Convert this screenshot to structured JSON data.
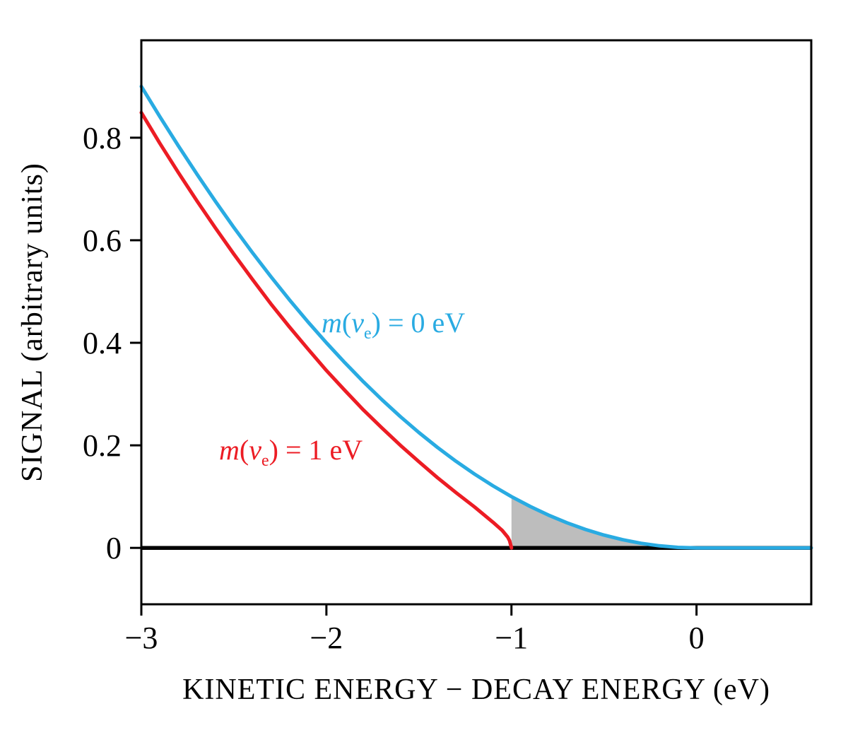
{
  "figure": {
    "background": "#ffffff"
  },
  "chart_data": {
    "type": "line",
    "title": "",
    "xlabel": "KINETIC ENERGY − DECAY ENERGY (eV)",
    "ylabel": "SIGNAL (arbitrary units)",
    "xlim": [
      -3,
      0.62
    ],
    "ylim": [
      -0.11,
      0.99
    ],
    "x_ticks": [
      -3,
      -2,
      -1,
      0
    ],
    "x_tick_labels": [
      "−3",
      "−2",
      "−1",
      "0"
    ],
    "y_ticks": [
      0,
      0.2,
      0.4,
      0.6,
      0.8
    ],
    "y_tick_labels": [
      "0",
      "0.2",
      "0.4",
      "0.6",
      "0.8"
    ],
    "grid": false,
    "axis_color": "#000000",
    "series": [
      {
        "name": "massless",
        "label": "m(νe) = 0 eV",
        "color": "#29abe2",
        "x": [
          -3,
          -2.9,
          -2.8,
          -2.7,
          -2.6,
          -2.5,
          -2.4,
          -2.3,
          -2.2,
          -2.1,
          -2,
          -1.9,
          -1.8,
          -1.7,
          -1.6,
          -1.5,
          -1.4,
          -1.3,
          -1.2,
          -1.1,
          -1,
          -0.9,
          -0.8,
          -0.7,
          -0.6,
          -0.5,
          -0.4,
          -0.3,
          -0.2,
          -0.1,
          0,
          0.2,
          0.4,
          0.62
        ],
        "y": [
          0.9,
          0.841,
          0.784,
          0.729,
          0.676,
          0.625,
          0.576,
          0.529,
          0.484,
          0.441,
          0.4,
          0.361,
          0.324,
          0.289,
          0.256,
          0.225,
          0.196,
          0.169,
          0.144,
          0.121,
          0.1,
          0.081,
          0.064,
          0.049,
          0.036,
          0.025,
          0.016,
          0.009,
          0.004,
          0.001,
          0,
          0,
          0,
          0
        ]
      },
      {
        "name": "massive-1ev",
        "label": "m(νe) = 1 eV",
        "color": "#ec1c24",
        "x": [
          -3,
          -2.9,
          -2.8,
          -2.7,
          -2.6,
          -2.5,
          -2.4,
          -2.3,
          -2.2,
          -2.1,
          -2,
          -1.9,
          -1.8,
          -1.7,
          -1.6,
          -1.5,
          -1.4,
          -1.3,
          -1.2,
          -1.1,
          -1.05,
          -1.02,
          -1.01,
          -1
        ],
        "y": [
          0.849,
          0.789,
          0.732,
          0.677,
          0.624,
          0.573,
          0.524,
          0.476,
          0.431,
          0.388,
          0.346,
          0.307,
          0.269,
          0.234,
          0.2,
          0.168,
          0.137,
          0.108,
          0.08,
          0.05,
          0.034,
          0.021,
          0.014,
          0
        ]
      }
    ],
    "baseline": {
      "y": 0,
      "color": "#000000"
    },
    "shaded_region": {
      "color": "#bdbdbd",
      "x_start": -1,
      "x_end": 0.62,
      "under_series": "massless"
    }
  },
  "labels": {
    "blue": {
      "m": "m",
      "open": "(",
      "nu": "ν",
      "sub": "e",
      "rest": ") = 0 eV"
    },
    "red": {
      "m": "m",
      "open": "(",
      "nu": "ν",
      "sub": "e",
      "rest": ") = 1 eV"
    }
  }
}
